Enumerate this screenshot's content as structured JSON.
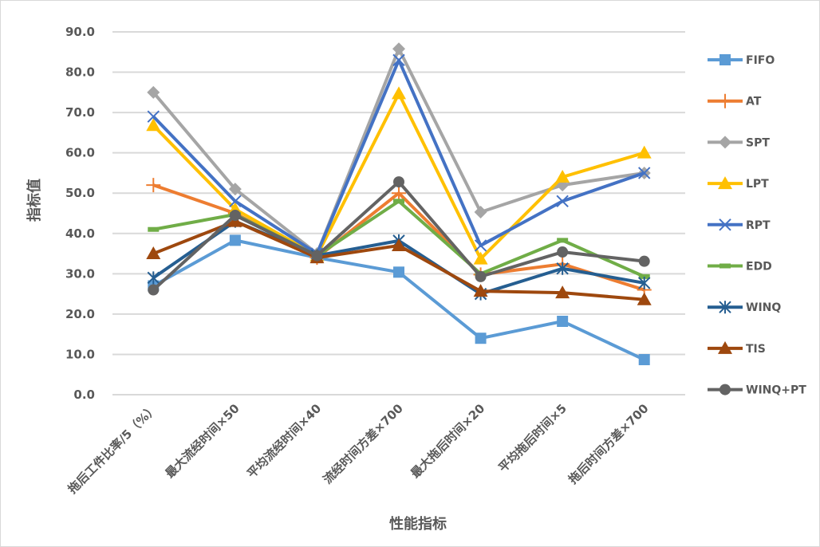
{
  "chart_data": {
    "type": "line",
    "title": "",
    "xlabel": "性能指标",
    "ylabel": "指标值",
    "ylim": [
      0,
      90
    ],
    "yticks": [
      "0.0",
      "10.0",
      "20.0",
      "30.0",
      "40.0",
      "50.0",
      "60.0",
      "70.0",
      "80.0",
      "90.0"
    ],
    "grid": true,
    "legend_position": "right",
    "categories": [
      "拖后工件比率/5（%）",
      "最大流经时间×50",
      "平均流经时间×40",
      "流经时间方差×700",
      "最大拖后时间×20",
      "平均拖后时间×5",
      "拖后时间方差×700"
    ],
    "series": [
      {
        "name": "FIFO",
        "color": "#5B9BD5",
        "marker": "square",
        "values": [
          27.0,
          38.3,
          34.0,
          30.4,
          14.0,
          18.2,
          8.7
        ]
      },
      {
        "name": "AT",
        "color": "#ED7D31",
        "marker": "plus",
        "values": [
          52.0,
          45.0,
          34.0,
          50.0,
          29.8,
          32.4,
          26.0
        ]
      },
      {
        "name": "SPT",
        "color": "#A5A5A5",
        "marker": "diamond",
        "values": [
          75.0,
          51.0,
          35.0,
          85.8,
          45.3,
          52.0,
          55.0
        ]
      },
      {
        "name": "LPT",
        "color": "#FFC000",
        "marker": "triangle",
        "values": [
          66.8,
          46.0,
          34.5,
          74.7,
          33.7,
          54.0,
          60.0
        ]
      },
      {
        "name": "RPT",
        "color": "#4472C4",
        "marker": "x",
        "values": [
          69.0,
          48.0,
          35.0,
          83.0,
          37.0,
          48.0,
          55.0
        ]
      },
      {
        "name": "EDD",
        "color": "#70AD47",
        "marker": "dash",
        "values": [
          41.0,
          44.7,
          34.5,
          48.0,
          30.0,
          38.3,
          29.3
        ]
      },
      {
        "name": "WINQ",
        "color": "#255E91",
        "marker": "star",
        "values": [
          29.0,
          43.0,
          34.5,
          38.2,
          25.0,
          31.3,
          27.7
        ]
      },
      {
        "name": "TIS",
        "color": "#9E480E",
        "marker": "triangle",
        "values": [
          35.0,
          43.0,
          34.0,
          37.0,
          25.7,
          25.3,
          23.6
        ]
      },
      {
        "name": "WINQ+PT",
        "color": "#636363",
        "marker": "circle",
        "values": [
          26.0,
          44.5,
          34.5,
          52.8,
          29.3,
          35.4,
          33.1
        ]
      }
    ]
  }
}
